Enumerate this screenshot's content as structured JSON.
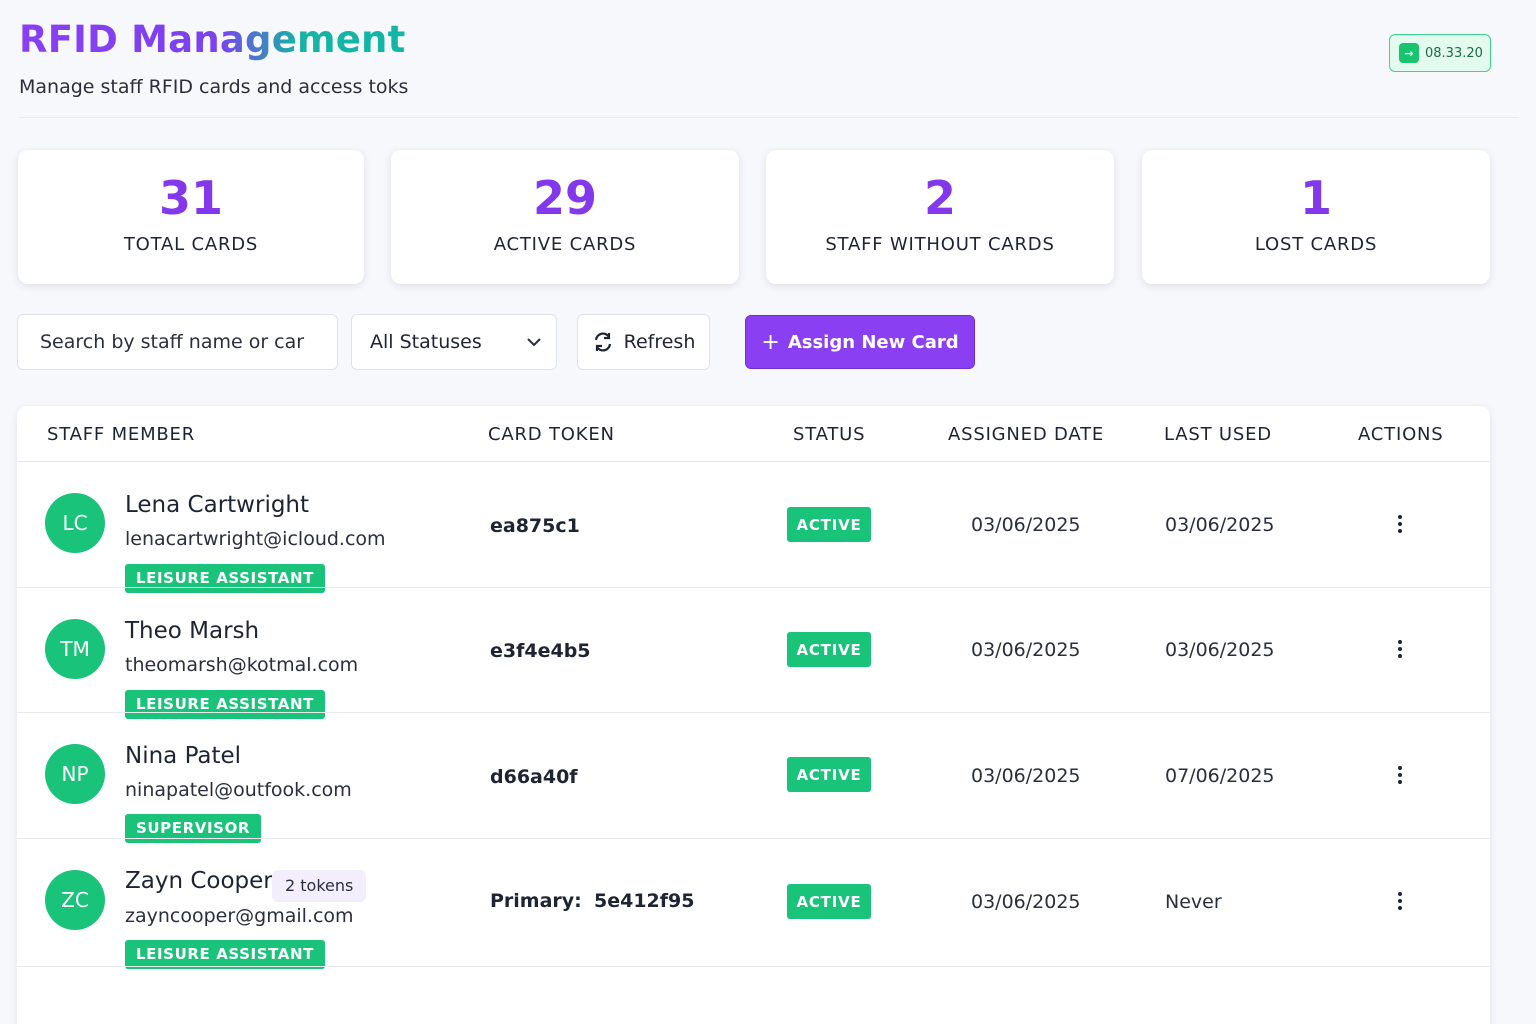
{
  "header": {
    "title": "RFID Management",
    "subtitle": "Manage staff RFID cards and access toks",
    "clock": "08.33.20",
    "clock_icon": "arrow-right-icon"
  },
  "stats": [
    {
      "value": "31",
      "label": "TOTAL CARDS"
    },
    {
      "value": "29",
      "label": "ACTIVE CARDS"
    },
    {
      "value": "2",
      "label": "STAFF WITHOUT CARDS"
    },
    {
      "value": "1",
      "label": "LOST CARDS"
    }
  ],
  "toolbar": {
    "search_placeholder": "Search by staff name or car",
    "status_filter": "All Statuses",
    "refresh_label": "Refresh",
    "assign_label": "Assign New Card"
  },
  "table": {
    "columns": [
      "STAFF MEMBER",
      "CARD TOKEN",
      "STATUS",
      "ASSIGNED DATE",
      "LAST USED",
      "ACTIONS"
    ],
    "rows": [
      {
        "initials": "LC",
        "name": "Lena Cartwright",
        "email": "lenacartwright@icloud.com",
        "role": "LEISURE ASSISTANT",
        "token": "ea875c1",
        "status": "ACTIVE",
        "assigned": "03/06/2025",
        "last_used": "03/06/2025"
      },
      {
        "initials": "TM",
        "name": "Theo Marsh",
        "email": "theomarsh@kotmal.com",
        "role": "LEISURE ASSISTANT",
        "token": "e3f4e4b5",
        "status": "ACTIVE",
        "assigned": "03/06/2025",
        "last_used": "03/06/2025"
      },
      {
        "initials": "NP",
        "name": "Nina Patel",
        "email": "ninapatel@outfook.com",
        "role": "SUPERVISOR",
        "token": "d66a40f",
        "status": "ACTIVE",
        "assigned": "03/06/2025",
        "last_used": "07/06/2025"
      },
      {
        "initials": "ZC",
        "name": "Zayn Cooper",
        "tokens_badge": "2 tokens",
        "email": "zayncooper@gmail.com",
        "role": "LEISURE ASSISTANT",
        "token_label": "Primary:",
        "token": "5e412f95",
        "status": "ACTIVE",
        "assigned": "03/06/2025",
        "last_used": "Never"
      }
    ]
  },
  "colors": {
    "accent": "#8b3ff2",
    "success": "#19c47a"
  }
}
